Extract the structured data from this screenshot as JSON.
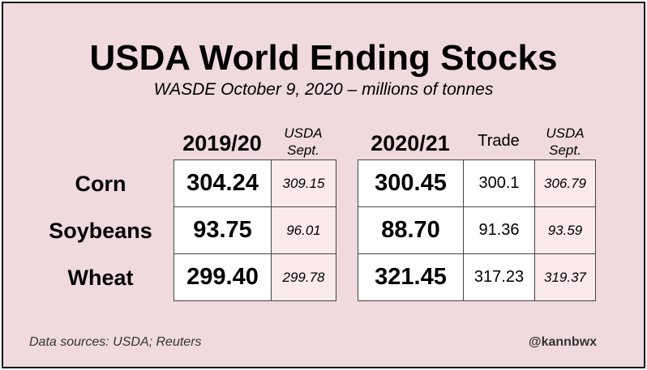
{
  "chart_data": {
    "type": "table",
    "title": "USDA World Ending Stocks",
    "subtitle": "WASDE October 9, 2020 – millions of tonnes",
    "columns": [
      {
        "key": "y2019",
        "label": "2019/20",
        "style": "main"
      },
      {
        "key": "sept2019",
        "label_line1": "USDA",
        "label_line2": "Sept.",
        "style": "sept"
      },
      {
        "key": "y2020",
        "label": "2020/21",
        "style": "main"
      },
      {
        "key": "trade",
        "label": "Trade",
        "style": "trade"
      },
      {
        "key": "sept2020",
        "label_line1": "USDA",
        "label_line2": "Sept.",
        "style": "sept"
      }
    ],
    "rows": [
      {
        "label": "Corn",
        "y2019": "304.24",
        "sept2019": "309.15",
        "y2020": "300.45",
        "trade": "300.1",
        "sept2020": "306.79"
      },
      {
        "label": "Soybeans",
        "y2019": "93.75",
        "sept2019": "96.01",
        "y2020": "88.70",
        "trade": "91.36",
        "sept2020": "93.59"
      },
      {
        "label": "Wheat",
        "y2019": "299.40",
        "sept2019": "299.78",
        "y2020": "321.45",
        "trade": "317.23",
        "sept2020": "319.37"
      }
    ],
    "footer_source": "Data sources: USDA; Reuters",
    "footer_handle": "@kannbwx",
    "colors": {
      "background": "#f0dadd",
      "value_cell": "#ffffff",
      "sept_cell": "#faeaec",
      "border": "#444444"
    }
  }
}
